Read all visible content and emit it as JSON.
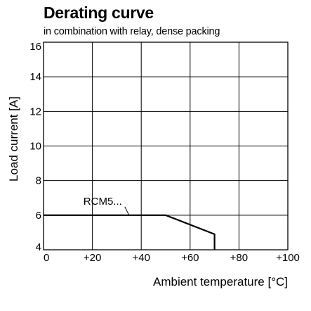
{
  "chart_data": {
    "type": "line",
    "title": "Derating curve",
    "subtitle": "in combination with relay, dense packing",
    "xlabel": "Ambient temperature [°C]",
    "ylabel": "Load current [A]",
    "xlim": [
      0,
      100
    ],
    "ylim": [
      4,
      16
    ],
    "x_ticks": [
      0,
      20,
      40,
      60,
      80,
      100
    ],
    "x_tick_labels": [
      "0",
      "+20",
      "+40",
      "+60",
      "+80",
      "+100"
    ],
    "y_ticks": [
      4,
      6,
      8,
      10,
      12,
      14,
      16
    ],
    "y_tick_labels": [
      "4",
      "6",
      "8",
      "10",
      "12",
      "14",
      "16"
    ],
    "grid": true,
    "series": [
      {
        "name": "RCM5...",
        "x": [
          0,
          50,
          70,
          70
        ],
        "y": [
          6,
          6,
          4.9,
          4
        ]
      }
    ],
    "annotation": {
      "text": "RCM5...",
      "x": 35,
      "y": 6
    }
  }
}
